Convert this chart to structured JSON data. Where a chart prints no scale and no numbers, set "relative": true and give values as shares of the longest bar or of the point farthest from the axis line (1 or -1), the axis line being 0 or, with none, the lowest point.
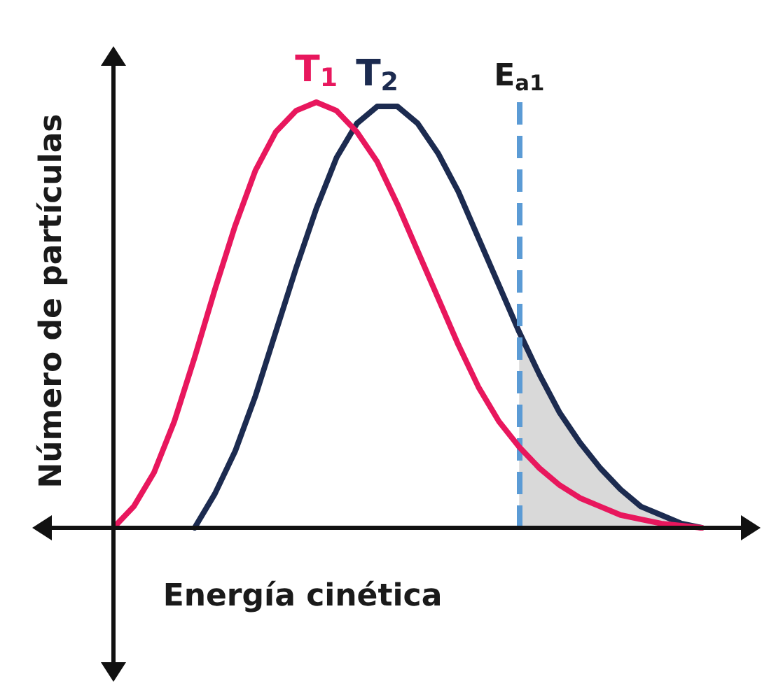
{
  "chart_data": {
    "type": "line",
    "relative": true,
    "xlabel": "Energía cinética",
    "ylabel": "Número de partículas",
    "annotations": [
      "E$_{a1}$"
    ],
    "categories": [
      null,
      null,
      null,
      null,
      null,
      null,
      null,
      null,
      null,
      null,
      null,
      null,
      null,
      null,
      null,
      null,
      null,
      null,
      null,
      null,
      null,
      null,
      null,
      null,
      null,
      null,
      null,
      null,
      null,
      null
    ],
    "grid": false,
    "legend": false,
    "marker": "none",
    "line_style": "solid",
    "series": [
      {
        "type": "area",
        "color": "#d9d9d9",
        "values": [
          null,
          null,
          null,
          null,
          null,
          null,
          null,
          null,
          null,
          null,
          null,
          null,
          null,
          null,
          null,
          null,
          null,
          null,
          null,
          null,
          0.46,
          0.36,
          0.27,
          0.2,
          0.14,
          0.09,
          0.05,
          0.03,
          0.01,
          0
        ]
      },
      {
        "name": "T$_{1}$",
        "color": "#e8175d",
        "values": [
          0,
          0.05,
          0.13,
          0.25,
          0.4,
          0.56,
          0.71,
          0.84,
          0.93,
          0.98,
          1,
          0.98,
          0.93,
          0.86,
          0.76,
          0.65,
          0.54,
          0.43,
          0.33,
          0.25,
          0.19,
          0.14,
          0.1,
          0.07,
          0.05,
          0.03,
          0.02,
          0.01,
          0.005,
          0
        ]
      },
      {
        "name": "T$_{2}$",
        "color": "#1c2b50",
        "values": [
          null,
          null,
          null,
          null,
          0,
          0.08,
          0.18,
          0.31,
          0.46,
          0.61,
          0.75,
          0.87,
          0.95,
          0.99,
          0.99,
          0.95,
          0.88,
          0.79,
          0.68,
          0.57,
          0.46,
          0.36,
          0.27,
          0.2,
          0.14,
          0.09,
          0.05,
          0.03,
          0.01,
          0
        ]
      }
    ]
  }
}
